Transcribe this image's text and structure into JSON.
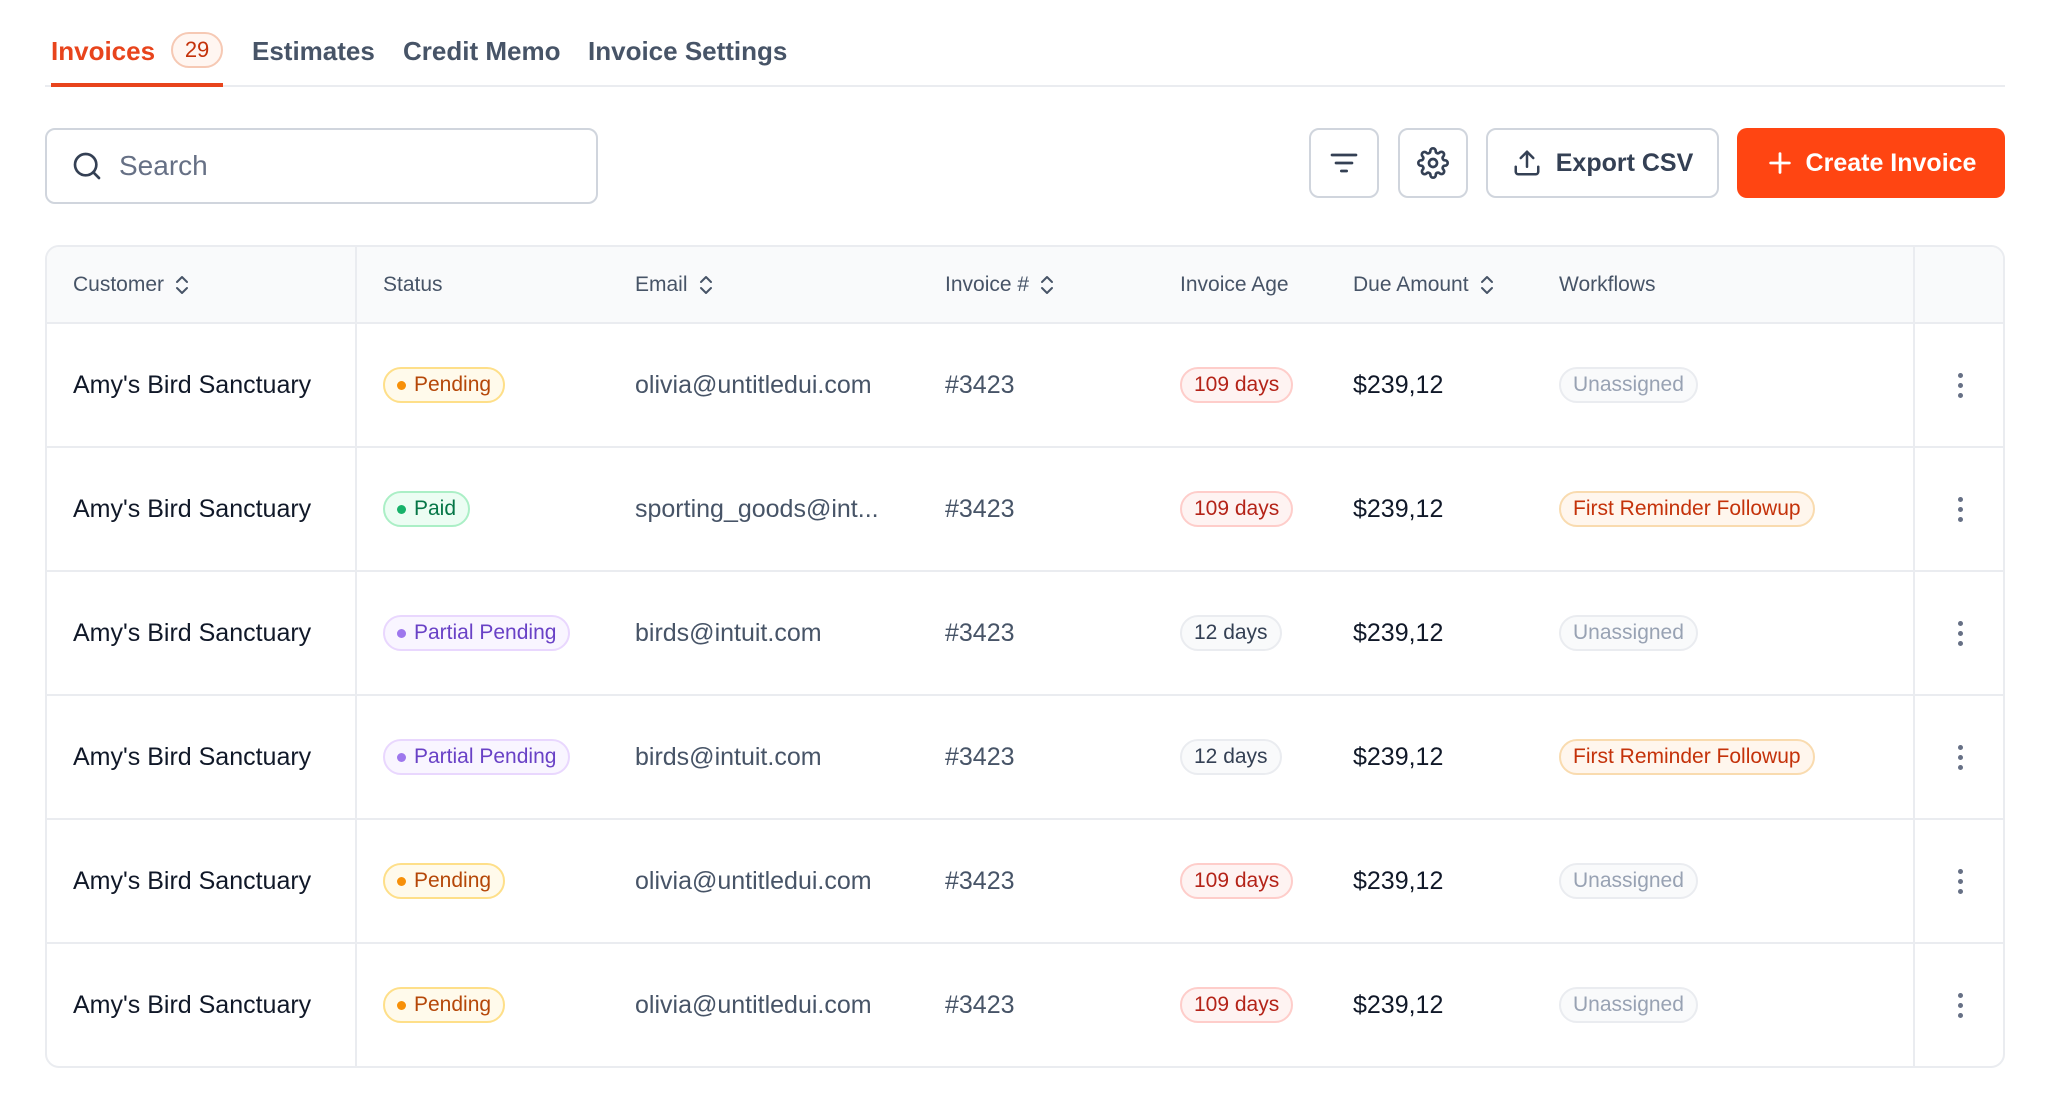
{
  "tabs": [
    {
      "label": "Invoices",
      "count": "29",
      "active": true
    },
    {
      "label": "Estimates"
    },
    {
      "label": "Credit Memo"
    },
    {
      "label": "Invoice Settings"
    }
  ],
  "search": {
    "placeholder": "Search",
    "icon": "search-icon"
  },
  "toolbar": {
    "filter_icon": "filter-lines-icon",
    "settings_icon": "gear-icon",
    "export_label": "Export CSV",
    "export_icon": "upload-icon",
    "create_label": "Create Invoice",
    "create_icon": "plus-icon",
    "create_color": "#ff4512"
  },
  "table": {
    "headers": {
      "customer": "Customer",
      "status": "Status",
      "email": "Email",
      "invoice": "Invoice #",
      "age": "Invoice Age",
      "amount": "Due Amount",
      "workflows": "Workflows"
    },
    "rows": [
      {
        "customer": "Amy's Bird Sanctuary",
        "status": "Pending",
        "email": "olivia@untitledui.com",
        "invoice": "#3423",
        "age": "109 days",
        "amount": "$239,12",
        "workflow": "Unassigned"
      },
      {
        "customer": "Amy's Bird Sanctuary",
        "status": "Paid",
        "email": "sporting_goods@int...",
        "invoice": "#3423",
        "age": "109 days",
        "amount": "$239,12",
        "workflow": "First Reminder Followup"
      },
      {
        "customer": "Amy's Bird Sanctuary",
        "status": "Partial Pending",
        "email": "birds@intuit.com",
        "invoice": "#3423",
        "age": "12 days",
        "amount": "$239,12",
        "workflow": "Unassigned"
      },
      {
        "customer": "Amy's Bird Sanctuary",
        "status": "Partial Pending",
        "email": "birds@intuit.com",
        "invoice": "#3423",
        "age": "12 days",
        "amount": "$239,12",
        "workflow": "First Reminder Followup"
      },
      {
        "customer": "Amy's Bird Sanctuary",
        "status": "Pending",
        "email": "olivia@untitledui.com",
        "invoice": "#3423",
        "age": "109 days",
        "amount": "$239,12",
        "workflow": "Unassigned"
      },
      {
        "customer": "Amy's Bird Sanctuary",
        "status": "Pending",
        "email": "olivia@untitledui.com",
        "invoice": "#3423",
        "age": "109 days",
        "amount": "$239,12",
        "workflow": "Unassigned"
      }
    ]
  },
  "colors": {
    "accent": "#e8441c",
    "pending": "#b54708",
    "paid": "#067647",
    "partial": "#6941c6",
    "overdue": "#b42318",
    "workflow": "#c4320a"
  }
}
